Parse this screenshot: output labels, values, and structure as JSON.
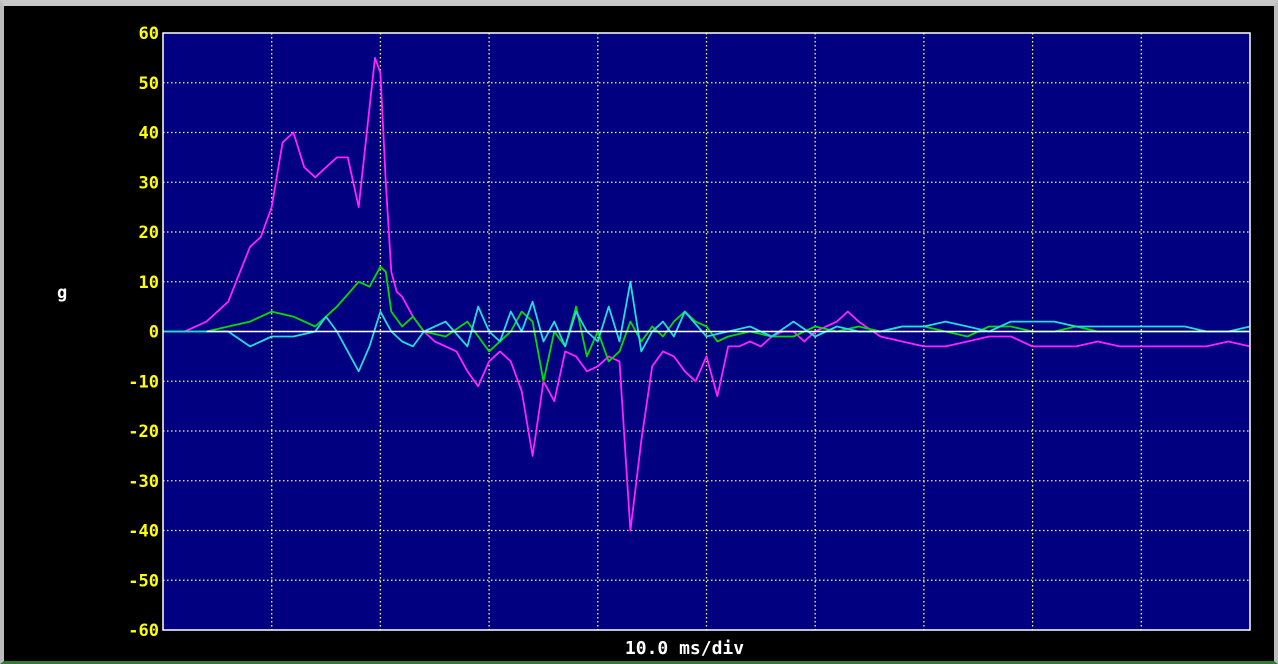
{
  "chart_data": {
    "type": "line",
    "title": "",
    "xlabel": "10.0 ms/div",
    "ylabel": "g",
    "ylim": [
      -60,
      60
    ],
    "yticks": [
      60,
      50,
      40,
      30,
      20,
      10,
      0,
      -10,
      -20,
      -30,
      -40,
      -50,
      -60
    ],
    "ytick_labels": [
      "60",
      "50",
      "40",
      "30",
      "20",
      "10",
      "0",
      "-10",
      "-20",
      "-30",
      "-40",
      "-50",
      "-60"
    ],
    "x_range_ms": [
      0,
      100
    ],
    "x_div_ms": 10.0,
    "grid": true,
    "background_color": "#000080",
    "grid_color": "#ffff66",
    "series": [
      {
        "color": "#ff22ff",
        "x": [
          0,
          2,
          4,
          6,
          8,
          9,
          10,
          11,
          12,
          13,
          14,
          15,
          16,
          17,
          18,
          19,
          19.5,
          20,
          20.5,
          21,
          21.5,
          22,
          23,
          24,
          25,
          27,
          28,
          29,
          30,
          31,
          32,
          33,
          34,
          35,
          36,
          37,
          38,
          39,
          40,
          41,
          42,
          43,
          44,
          45,
          46,
          47,
          48,
          49,
          50,
          51,
          52,
          53,
          54,
          55,
          56,
          57,
          58,
          59,
          60,
          61,
          62,
          63,
          64,
          66,
          68,
          70,
          72,
          74,
          76,
          78,
          80,
          82,
          84,
          86,
          88,
          90,
          92,
          94,
          96,
          98,
          100
        ],
        "values": [
          0,
          0,
          2,
          6,
          17,
          19,
          25,
          38,
          40,
          33,
          31,
          33,
          35,
          35,
          25,
          45,
          55,
          52,
          30,
          12,
          8,
          7,
          3,
          0,
          -2,
          -4,
          -8,
          -11,
          -6,
          -4,
          -6,
          -12,
          -25,
          -10,
          -14,
          -4,
          -5,
          -8,
          -7,
          -5,
          -6,
          -40,
          -22,
          -7,
          -4,
          -5,
          -8,
          -10,
          -5,
          -13,
          -3,
          -3,
          -2,
          -3,
          -1,
          0,
          0,
          -2,
          0,
          1,
          2,
          4,
          2,
          -1,
          -2,
          -3,
          -3,
          -2,
          -1,
          -1,
          -3,
          -3,
          -3,
          -2,
          -3,
          -3,
          -3,
          -3,
          -3,
          -2,
          -3
        ]
      },
      {
        "color": "#00dd00",
        "x": [
          0,
          4,
          6,
          8,
          10,
          12,
          14,
          16,
          18,
          19,
          20,
          20.5,
          21,
          22,
          23,
          24,
          26,
          28,
          30,
          32,
          33,
          34,
          35,
          36,
          37,
          38,
          39,
          40,
          41,
          42,
          43,
          44,
          45,
          46,
          47,
          48,
          49,
          50,
          51,
          52,
          54,
          56,
          58,
          60,
          62,
          64,
          66,
          68,
          70,
          72,
          74,
          76,
          78,
          80,
          82,
          84,
          86,
          88,
          90,
          92,
          94,
          96,
          98,
          100
        ],
        "values": [
          0,
          0,
          1,
          2,
          4,
          3,
          1,
          5,
          10,
          9,
          13,
          12,
          4,
          1,
          3,
          0,
          -1,
          2,
          -4,
          0,
          4,
          2,
          -10,
          0,
          -3,
          5,
          -5,
          0,
          -6,
          -4,
          2,
          -2,
          1,
          -1,
          2,
          4,
          2,
          1,
          -2,
          -1,
          0,
          -1,
          -1,
          1,
          0,
          1,
          0,
          1,
          1,
          0,
          -1,
          1,
          1,
          0,
          0,
          1,
          0,
          0,
          0,
          0,
          0,
          0,
          0,
          0
        ]
      },
      {
        "color": "#22dddd",
        "x": [
          0,
          6,
          8,
          9,
          10,
          12,
          14,
          15,
          16,
          17,
          18,
          19,
          20,
          20.5,
          21,
          22,
          23,
          24,
          26,
          28,
          29,
          30,
          31,
          32,
          33,
          34,
          35,
          36,
          37,
          38,
          39,
          40,
          41,
          42,
          43,
          44,
          45,
          46,
          47,
          48,
          50,
          52,
          54,
          56,
          58,
          60,
          62,
          64,
          66,
          68,
          70,
          72,
          74,
          76,
          78,
          80,
          82,
          84,
          86,
          88,
          90,
          92,
          94,
          96,
          98,
          100
        ],
        "values": [
          0,
          0,
          -3,
          -2,
          -1,
          -1,
          0,
          3,
          0,
          -4,
          -8,
          -3,
          4,
          2,
          0,
          -2,
          -3,
          0,
          2,
          -3,
          5,
          0,
          -2,
          4,
          0,
          6,
          -2,
          2,
          -3,
          4,
          0,
          -2,
          5,
          -2,
          10,
          -4,
          0,
          2,
          -1,
          4,
          -1,
          0,
          1,
          -1,
          2,
          -1,
          1,
          0,
          0,
          1,
          1,
          2,
          1,
          0,
          2,
          2,
          2,
          1,
          1,
          1,
          1,
          1,
          1,
          0,
          0,
          1
        ]
      }
    ],
    "reference_line": {
      "y": 0,
      "color": "#ffffff"
    }
  }
}
